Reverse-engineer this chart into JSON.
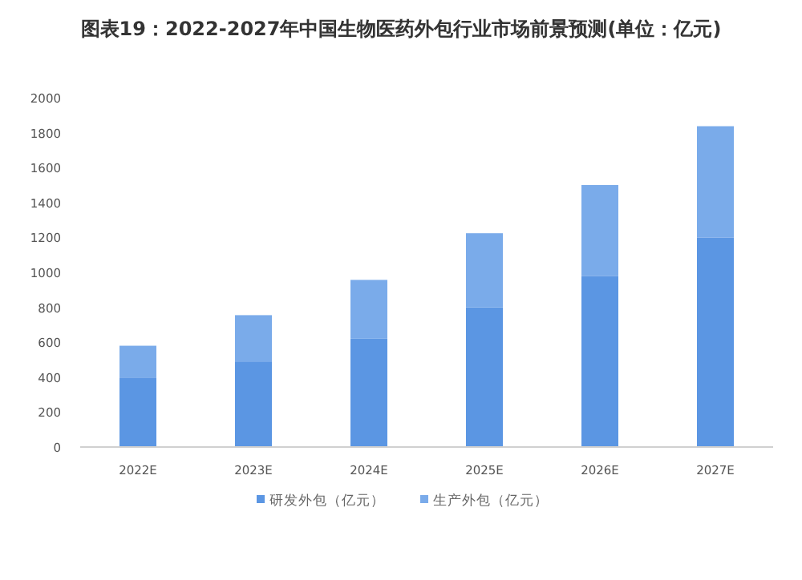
{
  "chart_data": {
    "type": "bar",
    "title": "图表19：2022-2027年中国生物医药外包行业市场前景预测(单位：亿元)",
    "stacked": true,
    "categories": [
      "2022E",
      "2023E",
      "2024E",
      "2025E",
      "2026E",
      "2027E"
    ],
    "series": [
      {
        "name": "研发外包（亿元）",
        "color": "#5b96e3",
        "values": [
          398,
          490,
          620,
          800,
          980,
          1200
        ]
      },
      {
        "name": "生产外包（亿元）",
        "color": "#7aabea",
        "values": [
          182,
          265,
          337,
          424,
          520,
          637
        ]
      }
    ],
    "ylim": [
      0,
      2000
    ],
    "yticks": [
      0,
      200,
      400,
      600,
      800,
      1000,
      1200,
      1400,
      1600,
      1800,
      2000
    ],
    "legend": "bottom"
  }
}
